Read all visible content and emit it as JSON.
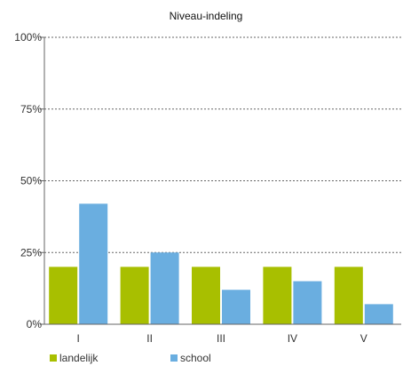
{
  "chart_data": {
    "type": "bar",
    "title": "Niveau-indeling",
    "xlabel": "",
    "ylabel": "",
    "categories": [
      "I",
      "II",
      "III",
      "IV",
      "V"
    ],
    "series": [
      {
        "name": "landelijk",
        "color": "#a8bf00",
        "values": [
          20,
          20,
          20,
          20,
          20
        ]
      },
      {
        "name": "school",
        "color": "#6aaee0",
        "values": [
          42,
          25,
          12,
          15,
          7
        ]
      }
    ],
    "ylim": [
      0,
      100
    ],
    "yticks": [
      0,
      25,
      50,
      75,
      100
    ],
    "ytick_labels": [
      "0%",
      "25%",
      "50%",
      "75%",
      "100%"
    ],
    "grid": true,
    "legend_position": "bottom-left"
  }
}
